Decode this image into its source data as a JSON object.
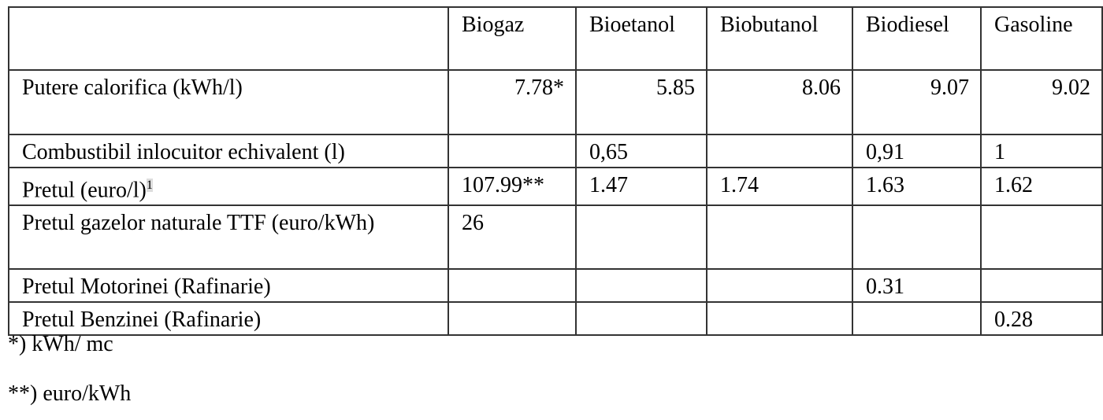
{
  "table": {
    "columns": [
      "Biogaz",
      "Bioetanol",
      "Biobutanol",
      "Biodiesel",
      "Gasoline"
    ],
    "rows": [
      {
        "label": "Putere calorifica (kWh/l)",
        "cells": [
          "7.78*",
          "5.85",
          "8.06",
          "9.07",
          "9.02"
        ]
      },
      {
        "label": "Combustibil inlocuitor echivalent (l)",
        "cells": [
          null,
          "0,65",
          null,
          "0,91",
          "1"
        ]
      },
      {
        "label": "Pretul (euro/l)",
        "note": "1",
        "cells": [
          "107.99**",
          "1.47",
          "1.74",
          "1.63",
          "1.62"
        ]
      },
      {
        "label": "Pretul gazelor naturale TTF (euro/kWh)",
        "cells": [
          "26",
          null,
          null,
          null,
          null
        ]
      },
      {
        "label": "Pretul Motorinei (Rafinarie)",
        "cells": [
          null,
          null,
          null,
          "0.31",
          null
        ]
      },
      {
        "label": "Pretul Benzinei (Rafinarie)",
        "cells": [
          null,
          null,
          null,
          null,
          "0.28"
        ]
      }
    ]
  },
  "footnotes": [
    "*) kWh/ mc",
    "**) euro/kWh"
  ]
}
